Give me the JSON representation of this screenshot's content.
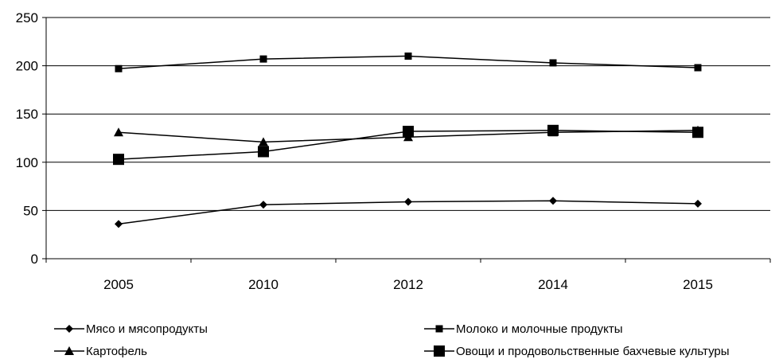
{
  "chart_data": {
    "type": "line",
    "title": "",
    "xlabel": "",
    "ylabel": "",
    "categories": [
      "2005",
      "2010",
      "2012",
      "2014",
      "2015"
    ],
    "ylim": [
      0,
      250
    ],
    "yticks": [
      0,
      50,
      100,
      150,
      200,
      250
    ],
    "grid": "horizontal",
    "legend_position": "bottom",
    "series": [
      {
        "name": "Мясо и мясопродукты",
        "marker": "diamond",
        "values": [
          36,
          56,
          59,
          60,
          57
        ]
      },
      {
        "name": "Молоко и молочные продукты",
        "marker": "square-small",
        "values": [
          197,
          207,
          210,
          203,
          198
        ]
      },
      {
        "name": "Картофель",
        "marker": "triangle",
        "values": [
          131,
          121,
          126,
          131,
          133
        ]
      },
      {
        "name": "Овощи  и продовольственные бахчевые культуры",
        "marker": "square-large",
        "values": [
          103,
          111,
          132,
          133,
          131
        ]
      }
    ],
    "colors": {
      "line": "#000000",
      "grid": "#000000",
      "background": "#ffffff"
    }
  }
}
